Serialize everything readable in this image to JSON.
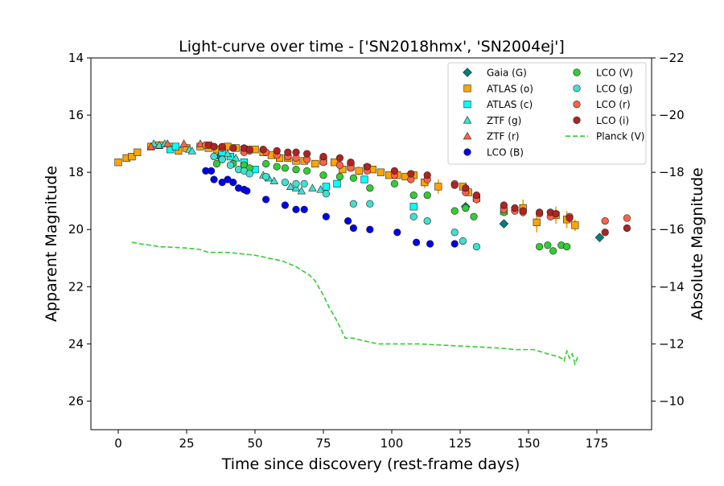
{
  "colors": {
    "gaia": "#008080",
    "atlas_o": "#ffa500",
    "atlas_c": "#00ffff",
    "ztf_g": "#40e0d0",
    "ztf_r": "#ff6347",
    "lco_B": "#0000ee",
    "lco_V": "#32cd32",
    "lco_g": "#40e0d0",
    "lco_r": "#ff6347",
    "lco_i": "#b22222",
    "planck": "#32cd32",
    "errorbar": "#ff9900"
  },
  "chart_data": {
    "type": "scatter",
    "title": "Light-curve over time - ['SN2018hmx', 'SN2004ej']",
    "xlabel": "Time since discovery (rest-frame days)",
    "ylabel": "Apparent Magnitude",
    "y2label": "Absolute Magnitude",
    "xlim": [
      -10,
      195
    ],
    "ylim": [
      27,
      14
    ],
    "y2lim": [
      -9,
      -22
    ],
    "xticks": [
      0,
      25,
      50,
      75,
      100,
      125,
      150,
      175
    ],
    "yticks": [
      14,
      16,
      18,
      20,
      22,
      24,
      26
    ],
    "y2ticks": [
      -22,
      -20,
      -18,
      -16,
      -14,
      -12,
      -10
    ],
    "xtick_labels": [
      "0",
      "25",
      "50",
      "75",
      "100",
      "125",
      "150",
      "175"
    ],
    "ytick_labels": [
      "14",
      "16",
      "18",
      "20",
      "22",
      "24",
      "26"
    ],
    "y2tick_labels": [
      "−22",
      "−20",
      "−18",
      "−16",
      "−14",
      "−12",
      "−10"
    ],
    "grid": false,
    "legend_position": "top-right",
    "series": [
      {
        "name": "Gaia (G)",
        "marker": "diamond",
        "color_key": "gaia",
        "points": [
          [
            37,
            17.45
          ],
          [
            127,
            19.2
          ],
          [
            141,
            19.8
          ],
          [
            176,
            20.28
          ]
        ]
      },
      {
        "name": "ATLAS (o)",
        "marker": "square",
        "color_key": "atlas_o",
        "points": [
          [
            0,
            17.65
          ],
          [
            3,
            17.5
          ],
          [
            5,
            17.45
          ],
          [
            7,
            17.3
          ],
          [
            12,
            17.1
          ],
          [
            15,
            17.05
          ],
          [
            19,
            17.1
          ],
          [
            22,
            17.25
          ],
          [
            25,
            17.15
          ],
          [
            30,
            17.1
          ],
          [
            33,
            17.15
          ],
          [
            36,
            17.2
          ],
          [
            40,
            17.1
          ],
          [
            43,
            17.15
          ],
          [
            46,
            17.2
          ],
          [
            50,
            17.2
          ],
          [
            53,
            17.3
          ],
          [
            56,
            17.4
          ],
          [
            59,
            17.5
          ],
          [
            62,
            17.5
          ],
          [
            65,
            17.6
          ],
          [
            68,
            17.6
          ],
          [
            72,
            17.7
          ],
          [
            75,
            17.6
          ],
          [
            79,
            17.65
          ],
          [
            82,
            17.9
          ],
          [
            85,
            17.8
          ],
          [
            88,
            17.95
          ],
          [
            91,
            17.85
          ],
          [
            93,
            17.9
          ],
          [
            96,
            18.0
          ],
          [
            99,
            18.1
          ],
          [
            102,
            18.1
          ],
          [
            105,
            18.15
          ],
          [
            108,
            18.1
          ],
          [
            112,
            18.35
          ],
          [
            117,
            18.5
          ],
          [
            126,
            18.5
          ],
          [
            128,
            18.7
          ],
          [
            131,
            18.9
          ],
          [
            141,
            19.35
          ],
          [
            148,
            19.25
          ],
          [
            153,
            19.75
          ],
          [
            160,
            19.5
          ],
          [
            164,
            19.65
          ],
          [
            167,
            19.85
          ]
        ]
      },
      {
        "name": "ATLAS (c)",
        "marker": "square",
        "color_key": "atlas_c",
        "points": [
          [
            19,
            17.2
          ],
          [
            21,
            17.1
          ],
          [
            38,
            17.3
          ],
          [
            41,
            17.45
          ],
          [
            46,
            17.65
          ],
          [
            50,
            17.9
          ],
          [
            76,
            18.5
          ],
          [
            80,
            18.4
          ],
          [
            90,
            18.25
          ],
          [
            108,
            19.2
          ]
        ]
      },
      {
        "name": "ZTF (g)",
        "marker": "triangle",
        "color_key": "ztf_g",
        "points": [
          [
            13,
            17.0
          ],
          [
            15,
            17.05
          ],
          [
            17,
            17.0
          ],
          [
            26,
            17.2
          ],
          [
            27,
            17.25
          ],
          [
            40,
            17.35
          ],
          [
            43,
            17.5
          ],
          [
            53,
            18.1
          ],
          [
            55,
            18.2
          ],
          [
            57,
            18.3
          ],
          [
            63,
            18.5
          ],
          [
            65,
            18.55
          ],
          [
            67,
            18.65
          ],
          [
            71,
            18.55
          ],
          [
            74,
            18.6
          ]
        ]
      },
      {
        "name": "ZTF (r)",
        "marker": "triangle",
        "color_key": "ztf_r",
        "points": [
          [
            12,
            17.1
          ],
          [
            18,
            17.0
          ],
          [
            24,
            17.0
          ],
          [
            30,
            17.0
          ],
          [
            34,
            17.05
          ]
        ]
      },
      {
        "name": "LCO (B)",
        "marker": "circle",
        "color_key": "lco_B",
        "points": [
          [
            32,
            17.95
          ],
          [
            34,
            17.95
          ],
          [
            35,
            18.25
          ],
          [
            38,
            18.35
          ],
          [
            40,
            18.25
          ],
          [
            42,
            18.35
          ],
          [
            44,
            18.55
          ],
          [
            46,
            18.6
          ],
          [
            47,
            18.65
          ],
          [
            54,
            18.95
          ],
          [
            61,
            19.15
          ],
          [
            65,
            19.3
          ],
          [
            68,
            19.3
          ],
          [
            76,
            19.55
          ],
          [
            84,
            19.7
          ],
          [
            86,
            19.95
          ],
          [
            92,
            20.0
          ],
          [
            102,
            20.1
          ],
          [
            109,
            20.45
          ],
          [
            114,
            20.5
          ],
          [
            123,
            20.5
          ]
        ]
      },
      {
        "name": "LCO (V)",
        "marker": "circle",
        "color_key": "lco_V",
        "points": [
          [
            36,
            17.7
          ],
          [
            38,
            17.55
          ],
          [
            42,
            17.7
          ],
          [
            46,
            17.75
          ],
          [
            48,
            17.85
          ],
          [
            54,
            17.7
          ],
          [
            58,
            17.8
          ],
          [
            61,
            17.85
          ],
          [
            65,
            17.9
          ],
          [
            69,
            17.95
          ],
          [
            75,
            18.1
          ],
          [
            81,
            18.15
          ],
          [
            86,
            18.2
          ],
          [
            92,
            18.55
          ],
          [
            101,
            18.4
          ],
          [
            108,
            18.8
          ],
          [
            113,
            18.8
          ],
          [
            123,
            19.35
          ],
          [
            127,
            19.25
          ],
          [
            130,
            19.55
          ],
          [
            141,
            19.4
          ],
          [
            154,
            20.6
          ],
          [
            157,
            20.55
          ],
          [
            159,
            20.75
          ],
          [
            162,
            20.55
          ],
          [
            164,
            20.6
          ]
        ]
      },
      {
        "name": "LCO (g)",
        "marker": "circle",
        "color_key": "lco_g",
        "points": [
          [
            35,
            17.45
          ],
          [
            38,
            17.55
          ],
          [
            41,
            17.75
          ],
          [
            44,
            17.9
          ],
          [
            46,
            17.95
          ],
          [
            48,
            18.05
          ],
          [
            54,
            18.15
          ],
          [
            61,
            18.35
          ],
          [
            65,
            18.4
          ],
          [
            68,
            18.4
          ],
          [
            76,
            18.75
          ],
          [
            86,
            19.1
          ],
          [
            92,
            19.1
          ],
          [
            108,
            19.55
          ],
          [
            113,
            19.7
          ],
          [
            123,
            20.1
          ],
          [
            126,
            20.4
          ],
          [
            131,
            20.6
          ]
        ]
      },
      {
        "name": "LCO (r)",
        "marker": "circle",
        "color_key": "lco_r",
        "points": [
          [
            32,
            17.05
          ],
          [
            35,
            17.1
          ],
          [
            38,
            17.15
          ],
          [
            42,
            17.15
          ],
          [
            46,
            17.3
          ],
          [
            48,
            17.25
          ],
          [
            54,
            17.3
          ],
          [
            58,
            17.4
          ],
          [
            62,
            17.45
          ],
          [
            65,
            17.5
          ],
          [
            69,
            17.55
          ],
          [
            75,
            17.65
          ],
          [
            81,
            17.75
          ],
          [
            85,
            17.85
          ],
          [
            91,
            17.95
          ],
          [
            101,
            18.1
          ],
          [
            107,
            18.25
          ],
          [
            113,
            18.25
          ],
          [
            123,
            18.4
          ],
          [
            127,
            18.7
          ],
          [
            131,
            18.95
          ],
          [
            141,
            19.3
          ],
          [
            145,
            19.35
          ],
          [
            148,
            19.4
          ],
          [
            154,
            19.45
          ],
          [
            158,
            19.55
          ],
          [
            160,
            19.45
          ],
          [
            165,
            19.55
          ],
          [
            178,
            19.7
          ],
          [
            186,
            19.6
          ]
        ]
      },
      {
        "name": "LCO (i)",
        "marker": "circle",
        "color_key": "lco_i",
        "points": [
          [
            33,
            17.05
          ],
          [
            35,
            17.1
          ],
          [
            38,
            17.1
          ],
          [
            42,
            17.15
          ],
          [
            46,
            17.15
          ],
          [
            48,
            17.2
          ],
          [
            53,
            17.2
          ],
          [
            58,
            17.25
          ],
          [
            62,
            17.3
          ],
          [
            65,
            17.3
          ],
          [
            69,
            17.35
          ],
          [
            75,
            17.45
          ],
          [
            81,
            17.5
          ],
          [
            85,
            17.65
          ],
          [
            91,
            17.8
          ],
          [
            101,
            17.95
          ],
          [
            107,
            18.05
          ],
          [
            113,
            18.1
          ],
          [
            123,
            18.45
          ],
          [
            127,
            18.55
          ],
          [
            131,
            18.8
          ],
          [
            141,
            19.15
          ],
          [
            145,
            19.25
          ],
          [
            148,
            19.35
          ],
          [
            154,
            19.4
          ],
          [
            158,
            19.4
          ],
          [
            160,
            19.45
          ],
          [
            165,
            19.6
          ],
          [
            178,
            20.1
          ],
          [
            186,
            19.95
          ]
        ]
      },
      {
        "name": "Planck (V)",
        "marker": "dashed-line",
        "color_key": "planck",
        "points": [
          [
            5,
            20.45
          ],
          [
            8,
            20.5
          ],
          [
            12,
            20.55
          ],
          [
            15,
            20.6
          ],
          [
            20,
            20.62
          ],
          [
            25,
            20.65
          ],
          [
            30,
            20.7
          ],
          [
            33,
            20.8
          ],
          [
            40,
            20.8
          ],
          [
            45,
            20.85
          ],
          [
            50,
            20.9
          ],
          [
            55,
            21.0
          ],
          [
            60,
            21.1
          ],
          [
            65,
            21.3
          ],
          [
            70,
            21.6
          ],
          [
            72,
            21.8
          ],
          [
            75,
            22.3
          ],
          [
            77,
            22.7
          ],
          [
            80,
            23.2
          ],
          [
            83,
            23.8
          ],
          [
            86,
            23.8
          ],
          [
            90,
            23.9
          ],
          [
            95,
            24.0
          ],
          [
            100,
            24.0
          ],
          [
            110,
            24.0
          ],
          [
            120,
            24.05
          ],
          [
            130,
            24.1
          ],
          [
            140,
            24.15
          ],
          [
            145,
            24.2
          ],
          [
            152,
            24.2
          ],
          [
            157,
            24.35
          ],
          [
            161,
            24.45
          ],
          [
            162,
            24.5
          ],
          [
            163,
            24.6
          ],
          [
            164,
            24.25
          ],
          [
            165,
            24.5
          ],
          [
            166,
            24.35
          ],
          [
            167,
            24.7
          ],
          [
            168,
            24.45
          ]
        ]
      }
    ],
    "error_bars": [
      {
        "series": "ATLAS (o)",
        "x": 117,
        "y": 18.5,
        "err": 0.25
      },
      {
        "series": "ATLAS (o)",
        "x": 131,
        "y": 18.9,
        "err": 0.2
      },
      {
        "series": "ATLAS (o)",
        "x": 148,
        "y": 19.25,
        "err": 0.3
      },
      {
        "series": "ATLAS (o)",
        "x": 153,
        "y": 19.75,
        "err": 0.35
      },
      {
        "series": "ATLAS (o)",
        "x": 160,
        "y": 19.5,
        "err": 0.3
      },
      {
        "series": "ATLAS (o)",
        "x": 164,
        "y": 19.65,
        "err": 0.3
      },
      {
        "series": "ATLAS (o)",
        "x": 167,
        "y": 19.85,
        "err": 0.2
      },
      {
        "series": "ATLAS (o)",
        "x": 88,
        "y": 17.95,
        "err": 0.15
      },
      {
        "series": "ATLAS (o)",
        "x": 112,
        "y": 18.35,
        "err": 0.2
      }
    ]
  }
}
